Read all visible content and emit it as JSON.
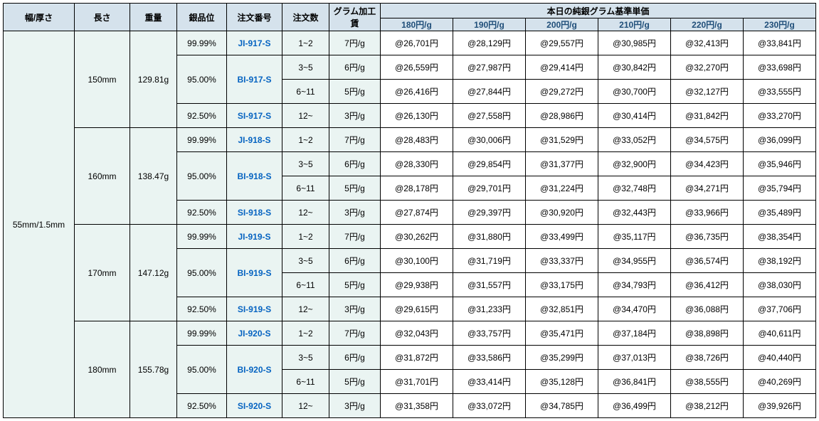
{
  "header": {
    "width": "幅/厚さ",
    "length": "長さ",
    "weight": "重量",
    "purity": "銀品位",
    "orderNo": "注文番号",
    "orderQty": "注文数",
    "gramFee": "グラム加工賃",
    "priceHeader": "本日の純銀グラム基準単価",
    "priceCols": [
      "180円/g",
      "190円/g",
      "200円/g",
      "210円/g",
      "220円/g",
      "230円/g"
    ]
  },
  "widthSpec": "55mm/1.5mm",
  "qtyTiers": [
    "1~2",
    "3~5",
    "6~11",
    "12~"
  ],
  "feeTiers": [
    "7円/g",
    "6円/g",
    "5円/g",
    "3円/g"
  ],
  "groups": [
    {
      "length": "150mm",
      "weight": "129.81g",
      "purities": [
        "99.99%",
        "95.00%",
        "92.50%"
      ],
      "orders": [
        "JI-917-S",
        "BI-917-S",
        "SI-917-S"
      ],
      "prices": [
        [
          "@26,701円",
          "@28,129円",
          "@29,557円",
          "@30,985円",
          "@32,413円",
          "@33,841円"
        ],
        [
          "@26,559円",
          "@27,987円",
          "@29,414円",
          "@30,842円",
          "@32,270円",
          "@33,698円"
        ],
        [
          "@26,416円",
          "@27,844円",
          "@29,272円",
          "@30,700円",
          "@32,127円",
          "@33,555円"
        ],
        [
          "@26,130円",
          "@27,558円",
          "@28,986円",
          "@30,414円",
          "@31,842円",
          "@33,270円"
        ]
      ]
    },
    {
      "length": "160mm",
      "weight": "138.47g",
      "purities": [
        "99.99%",
        "95.00%",
        "92.50%"
      ],
      "orders": [
        "JI-918-S",
        "BI-918-S",
        "SI-918-S"
      ],
      "prices": [
        [
          "@28,483円",
          "@30,006円",
          "@31,529円",
          "@33,052円",
          "@34,575円",
          "@36,099円"
        ],
        [
          "@28,330円",
          "@29,854円",
          "@31,377円",
          "@32,900円",
          "@34,423円",
          "@35,946円"
        ],
        [
          "@28,178円",
          "@29,701円",
          "@31,224円",
          "@32,748円",
          "@34,271円",
          "@35,794円"
        ],
        [
          "@27,874円",
          "@29,397円",
          "@30,920円",
          "@32,443円",
          "@33,966円",
          "@35,489円"
        ]
      ]
    },
    {
      "length": "170mm",
      "weight": "147.12g",
      "purities": [
        "99.99%",
        "95.00%",
        "92.50%"
      ],
      "orders": [
        "JI-919-S",
        "BI-919-S",
        "SI-919-S"
      ],
      "prices": [
        [
          "@30,262円",
          "@31,880円",
          "@33,499円",
          "@35,117円",
          "@36,735円",
          "@38,354円"
        ],
        [
          "@30,100円",
          "@31,719円",
          "@33,337円",
          "@34,955円",
          "@36,574円",
          "@38,192円"
        ],
        [
          "@29,938円",
          "@31,557円",
          "@33,175円",
          "@34,793円",
          "@36,412円",
          "@38,030円"
        ],
        [
          "@29,615円",
          "@31,233円",
          "@32,851円",
          "@34,470円",
          "@36,088円",
          "@37,706円"
        ]
      ]
    },
    {
      "length": "180mm",
      "weight": "155.78g",
      "purities": [
        "99.99%",
        "95.00%",
        "92.50%"
      ],
      "orders": [
        "JI-920-S",
        "BI-920-S",
        "SI-920-S"
      ],
      "prices": [
        [
          "@32,043円",
          "@33,757円",
          "@35,471円",
          "@37,184円",
          "@38,898円",
          "@40,611円"
        ],
        [
          "@31,872円",
          "@33,586円",
          "@35,299円",
          "@37,013円",
          "@38,726円",
          "@40,440円"
        ],
        [
          "@31,701円",
          "@33,414円",
          "@35,128円",
          "@36,841円",
          "@38,555円",
          "@40,269円"
        ],
        [
          "@31,358円",
          "@33,072円",
          "@34,785円",
          "@36,499円",
          "@38,212円",
          "@39,926円"
        ]
      ]
    }
  ]
}
